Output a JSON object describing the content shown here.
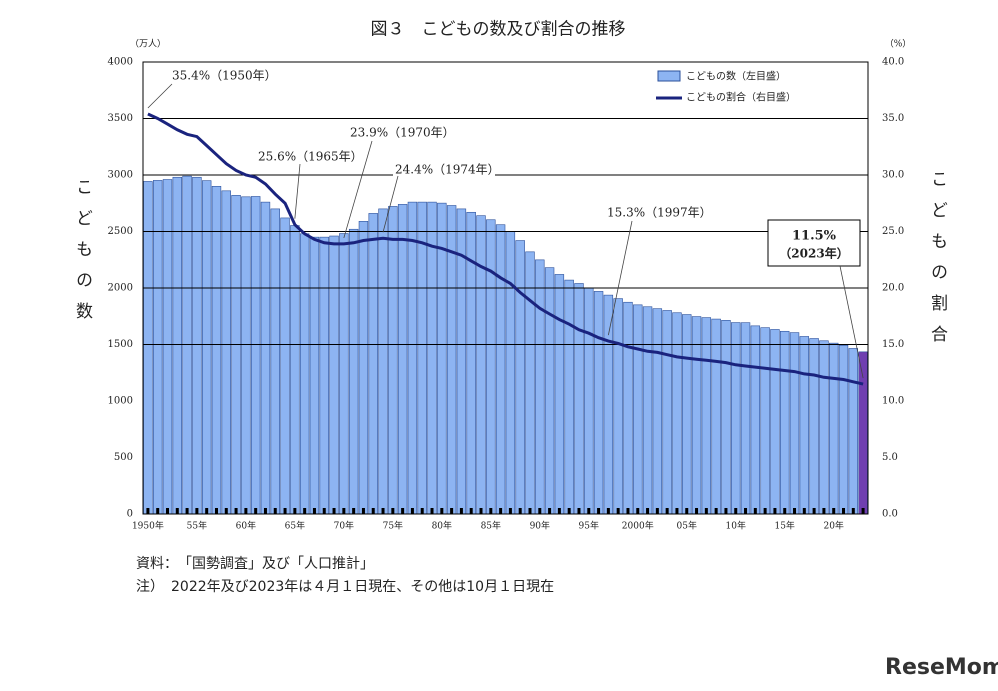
{
  "chart_data": {
    "type": "bar_line",
    "title": "図３　こどもの数及び割合の推移",
    "y_unit": "（万人）",
    "y2_unit": "（%）",
    "y_title": "こどもの数",
    "y2_title": "こどもの割合",
    "categories": [
      "1950年",
      null,
      null,
      null,
      null,
      "55年",
      null,
      null,
      null,
      null,
      "60年",
      null,
      null,
      null,
      null,
      "65年",
      null,
      null,
      null,
      null,
      "70年",
      null,
      null,
      null,
      null,
      "75年",
      null,
      null,
      null,
      null,
      "80年",
      null,
      null,
      null,
      null,
      "85年",
      null,
      null,
      null,
      null,
      "90年",
      null,
      null,
      null,
      null,
      "95年",
      null,
      null,
      null,
      null,
      "2000年",
      null,
      null,
      null,
      null,
      "05年",
      null,
      null,
      null,
      null,
      "10年",
      null,
      null,
      null,
      null,
      "15年",
      null,
      null,
      null,
      null,
      "20年",
      null,
      null,
      null
    ],
    "series": [
      {
        "name": "こどもの数（左目盛）",
        "color": "#8db4f2",
        "last_color": "#6f3fb0",
        "axis": "y",
        "values": [
          2943,
          2952,
          2960,
          2980,
          2990,
          2980,
          2950,
          2900,
          2860,
          2820,
          2807,
          2810,
          2760,
          2700,
          2620,
          2553,
          2480,
          2450,
          2450,
          2460,
          2482,
          2520,
          2590,
          2660,
          2700,
          2722,
          2740,
          2760,
          2760,
          2760,
          2751,
          2730,
          2700,
          2670,
          2640,
          2604,
          2560,
          2500,
          2420,
          2320,
          2249,
          2180,
          2120,
          2070,
          2040,
          2001,
          1970,
          1937,
          1906,
          1874,
          1851,
          1834,
          1817,
          1801,
          1781,
          1765,
          1747,
          1738,
          1725,
          1714,
          1694,
          1693,
          1665,
          1649,
          1633,
          1617,
          1605,
          1571,
          1553,
          1533,
          1512,
          1493,
          1465,
          1435
        ]
      },
      {
        "name": "こどもの割合（右目盛）",
        "color": "#1a237e",
        "axis": "y2",
        "values": [
          35.4,
          35.0,
          34.5,
          34.0,
          33.6,
          33.4,
          32.6,
          31.8,
          31.0,
          30.4,
          30.0,
          29.8,
          29.2,
          28.3,
          27.5,
          25.6,
          24.8,
          24.3,
          24.0,
          23.9,
          23.9,
          24.0,
          24.2,
          24.3,
          24.4,
          24.3,
          24.3,
          24.2,
          24.0,
          23.7,
          23.5,
          23.2,
          22.9,
          22.4,
          21.9,
          21.5,
          20.9,
          20.4,
          19.6,
          18.9,
          18.2,
          17.7,
          17.2,
          16.8,
          16.3,
          16.0,
          15.6,
          15.3,
          15.1,
          14.8,
          14.6,
          14.4,
          14.3,
          14.1,
          13.9,
          13.8,
          13.7,
          13.6,
          13.5,
          13.4,
          13.2,
          13.1,
          13.0,
          12.9,
          12.8,
          12.7,
          12.6,
          12.4,
          12.3,
          12.1,
          12.0,
          11.9,
          11.7,
          11.5
        ]
      }
    ],
    "ylim": [
      0,
      4000
    ],
    "yticks": [
      0,
      500,
      1000,
      1500,
      2000,
      2500,
      3000,
      3500,
      4000
    ],
    "y2lim": [
      0,
      40
    ],
    "y2ticks": [
      {
        "value": 0,
        "label": "0.0"
      },
      {
        "value": 5,
        "label": "5.0"
      },
      {
        "value": 10,
        "label": "10.0"
      },
      {
        "value": 15,
        "label": "15.0"
      },
      {
        "value": 20,
        "label": "20.0"
      },
      {
        "value": 25,
        "label": "25.0"
      },
      {
        "value": 30,
        "label": "30.0"
      },
      {
        "value": 35,
        "label": "35.0"
      },
      {
        "value": 40,
        "label": "40.0"
      }
    ],
    "grid": true,
    "legend": "upper right",
    "annotations": [
      {
        "text": "35.4%（1950年）"
      },
      {
        "text": "25.6%（1965年）"
      },
      {
        "text": "23.9%（1970年）"
      },
      {
        "text": "24.4%（1974年）"
      },
      {
        "text": "15.3%（1997年）"
      },
      {
        "text": "11.5%",
        "subtext": "（2023年）"
      }
    ]
  },
  "notes": {
    "source": "資料：　「国勢調査」及び「人口推計」",
    "note": "注）　2022年及び2023年は４月１日現在、その他は10月１日現在"
  },
  "watermark": "ReseMom"
}
